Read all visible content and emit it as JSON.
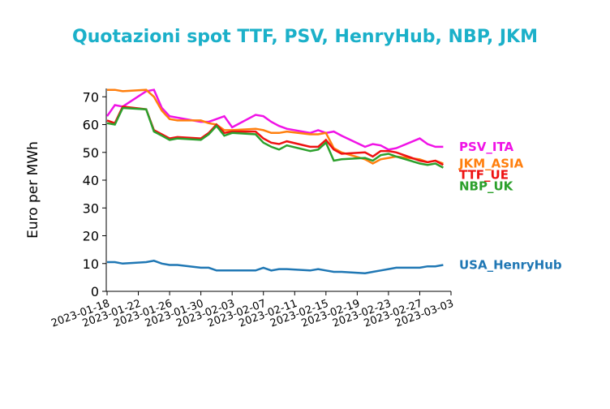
{
  "chart_data": {
    "type": "line",
    "title": "Quotazioni spot TTF, PSV, HenryHub, NBP, JKM",
    "y_label": "Euro per MWh",
    "x": [
      "2023-01-18",
      "2023-01-19",
      "2023-01-20",
      "2023-01-23",
      "2023-01-24",
      "2023-01-25",
      "2023-01-26",
      "2023-01-27",
      "2023-01-30",
      "2023-01-31",
      "2023-02-01",
      "2023-02-02",
      "2023-02-03",
      "2023-02-06",
      "2023-02-07",
      "2023-02-08",
      "2023-02-09",
      "2023-02-10",
      "2023-02-13",
      "2023-02-14",
      "2023-02-15",
      "2023-02-16",
      "2023-02-17",
      "2023-02-20",
      "2023-02-21",
      "2023-02-22",
      "2023-02-23",
      "2023-02-24",
      "2023-02-27",
      "2023-02-28",
      "2023-03-01",
      "2023-03-02"
    ],
    "series": [
      {
        "name": "PSV_ITA",
        "color": "#f013e6",
        "values": [
          63,
          67,
          66.5,
          72,
          72.5,
          66,
          63,
          62.5,
          61,
          61,
          62,
          63,
          59,
          63.5,
          63,
          61,
          59.5,
          58.5,
          57,
          58,
          57,
          57.5,
          56,
          52,
          53,
          52.5,
          51,
          51.5,
          55,
          53,
          52,
          52
        ]
      },
      {
        "name": "JKM_ASIA",
        "color": "#ff7f0e",
        "values": [
          72.5,
          72.5,
          72,
          72.5,
          70,
          65,
          62,
          61.5,
          61.5,
          60.5,
          60,
          58,
          58,
          58.5,
          58,
          57,
          57,
          57.5,
          56.5,
          56.5,
          57,
          51.5,
          50,
          47.5,
          46,
          47.5,
          48,
          48.5,
          47.5,
          46.5,
          47,
          46
        ]
      },
      {
        "name": "TTF_UE",
        "color": "#ee1111",
        "values": [
          61.5,
          60.5,
          66.5,
          65.5,
          58,
          56.5,
          55,
          55.5,
          55,
          57,
          60,
          57,
          57.5,
          57.5,
          55,
          53.5,
          53,
          54,
          52,
          52,
          54.5,
          51,
          49.5,
          50,
          48.5,
          50.5,
          50.5,
          50,
          47,
          46.5,
          47,
          45.5
        ]
      },
      {
        "name": "NBP_UK",
        "color": "#2ca02c",
        "values": [
          60.5,
          60,
          66,
          65.5,
          57.5,
          56,
          54.5,
          55,
          54.5,
          56.5,
          59.5,
          56,
          57,
          56.5,
          53.5,
          52,
          51,
          52.5,
          50.5,
          51,
          53.5,
          47,
          47.5,
          48,
          47,
          49,
          49.5,
          48.5,
          46,
          45.5,
          46,
          44.5
        ]
      },
      {
        "name": "USA_HenryHub",
        "color": "#1f77b4",
        "values": [
          10.5,
          10.5,
          10,
          10.5,
          11,
          10,
          9.5,
          9.5,
          8.5,
          8.5,
          7.5,
          7.5,
          7.5,
          7.5,
          8.5,
          7.5,
          8,
          8,
          7.5,
          8,
          7.5,
          7,
          7,
          6.5,
          7,
          7.5,
          8,
          8.5,
          8.5,
          9,
          9,
          9.5
        ]
      }
    ],
    "xlim": [
      "2023-01-18",
      "2023-03-03"
    ],
    "xticks": [
      "2023-01-18",
      "2023-01-22",
      "2023-01-26",
      "2023-01-30",
      "2023-02-03",
      "2023-02-07",
      "2023-02-11",
      "2023-02-15",
      "2023-02-19",
      "2023-02-23",
      "2023-02-27",
      "2023-03-03"
    ],
    "ylim": [
      0,
      73
    ],
    "yticks": [
      0,
      10,
      20,
      30,
      40,
      50,
      60,
      70
    ],
    "title_color": "#1bb0c9"
  }
}
